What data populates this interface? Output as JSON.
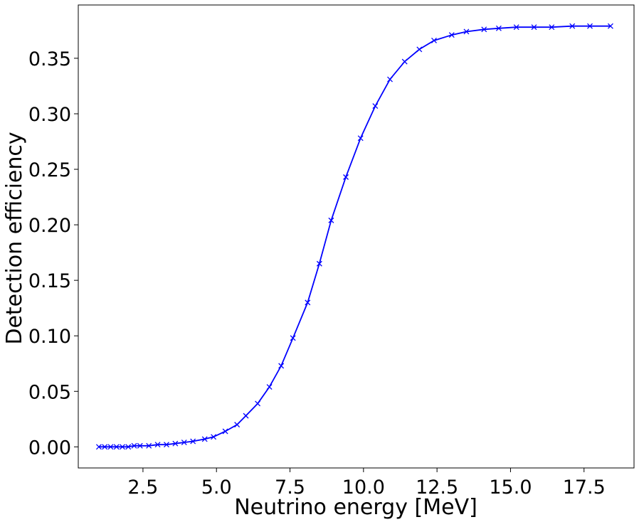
{
  "chart_data": {
    "type": "line",
    "title": "",
    "xlabel": "Neutrino energy [MeV]",
    "ylabel": "Detection efficiency",
    "xlim": [
      0.3,
      19.2
    ],
    "ylim": [
      -0.019,
      0.398
    ],
    "xticks": [
      2.5,
      5.0,
      7.5,
      10.0,
      12.5,
      15.0,
      17.5
    ],
    "xtick_labels": [
      "2.5",
      "5.0",
      "7.5",
      "10.0",
      "12.5",
      "15.0",
      "17.5"
    ],
    "yticks": [
      0.0,
      0.05,
      0.1,
      0.15,
      0.2,
      0.25,
      0.3,
      0.35
    ],
    "ytick_labels": [
      "0.00",
      "0.05",
      "0.10",
      "0.15",
      "0.20",
      "0.25",
      "0.30",
      "0.35"
    ],
    "grid": false,
    "line_color": "#0000ff",
    "marker": "x",
    "series": [
      {
        "x": [
          1.0,
          1.2,
          1.4,
          1.6,
          1.8,
          2.0,
          2.2,
          2.4,
          2.7,
          3.0,
          3.3,
          3.6,
          3.9,
          4.2,
          4.6,
          4.9,
          5.3,
          5.7,
          6.0,
          6.4,
          6.8,
          7.2,
          7.6,
          8.1,
          8.5,
          8.9,
          9.4,
          9.9,
          10.4,
          10.9,
          11.4,
          11.9,
          12.4,
          13.0,
          13.5,
          14.1,
          14.6,
          15.2,
          15.8,
          16.4,
          17.1,
          17.7,
          18.4
        ],
        "y": [
          0.0,
          0.0,
          0.0,
          0.0,
          0.0,
          0.0,
          0.001,
          0.001,
          0.001,
          0.002,
          0.002,
          0.003,
          0.004,
          0.005,
          0.007,
          0.009,
          0.014,
          0.02,
          0.028,
          0.039,
          0.054,
          0.073,
          0.098,
          0.13,
          0.165,
          0.204,
          0.243,
          0.278,
          0.307,
          0.331,
          0.347,
          0.358,
          0.366,
          0.371,
          0.374,
          0.376,
          0.377,
          0.378,
          0.378,
          0.378,
          0.379,
          0.379,
          0.379
        ]
      }
    ]
  }
}
